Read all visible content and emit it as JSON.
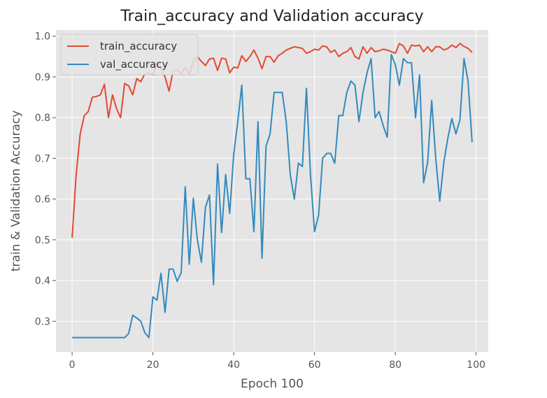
{
  "chart_data": {
    "type": "line",
    "title": "Train_accuracy and Validation accuracy",
    "xlabel": "Epoch 100",
    "ylabel": "train & Validation Accuracy",
    "xlim": [
      -4,
      103
    ],
    "ylim": [
      0.225,
      1.015
    ],
    "x_ticks": [
      "0",
      "20",
      "40",
      "60",
      "80",
      "100"
    ],
    "y_ticks": [
      "0.3",
      "0.4",
      "0.5",
      "0.6",
      "0.7",
      "0.8",
      "0.9",
      "1.0"
    ],
    "grid": true,
    "legend_position": "top-left",
    "style": "ggplot",
    "series": [
      {
        "name": "train_accuracy",
        "color": "#E24A33",
        "values": [
          0.505,
          0.66,
          0.76,
          0.805,
          0.815,
          0.85,
          0.852,
          0.856,
          0.882,
          0.8,
          0.856,
          0.822,
          0.8,
          0.884,
          0.878,
          0.856,
          0.896,
          0.888,
          0.908,
          0.91,
          0.905,
          0.935,
          0.92,
          0.9,
          0.865,
          0.915,
          0.918,
          0.908,
          0.922,
          0.908,
          0.938,
          0.95,
          0.938,
          0.928,
          0.944,
          0.946,
          0.916,
          0.946,
          0.944,
          0.91,
          0.924,
          0.922,
          0.952,
          0.938,
          0.95,
          0.966,
          0.946,
          0.92,
          0.95,
          0.95,
          0.936,
          0.952,
          0.958,
          0.966,
          0.97,
          0.974,
          0.972,
          0.97,
          0.958,
          0.962,
          0.968,
          0.966,
          0.976,
          0.974,
          0.96,
          0.966,
          0.95,
          0.958,
          0.962,
          0.972,
          0.95,
          0.944,
          0.974,
          0.958,
          0.972,
          0.962,
          0.964,
          0.968,
          0.966,
          0.962,
          0.958,
          0.982,
          0.976,
          0.958,
          0.978,
          0.976,
          0.978,
          0.962,
          0.974,
          0.962,
          0.974,
          0.974,
          0.966,
          0.97,
          0.978,
          0.972,
          0.982,
          0.975,
          0.97,
          0.96
        ]
      },
      {
        "name": "val_accuracy",
        "color": "#348ABD",
        "values": [
          0.26,
          0.26,
          0.26,
          0.26,
          0.26,
          0.26,
          0.26,
          0.26,
          0.26,
          0.26,
          0.26,
          0.26,
          0.26,
          0.26,
          0.27,
          0.315,
          0.308,
          0.3,
          0.272,
          0.26,
          0.36,
          0.352,
          0.418,
          0.322,
          0.428,
          0.428,
          0.398,
          0.42,
          0.63,
          0.44,
          0.602,
          0.5,
          0.445,
          0.58,
          0.61,
          0.39,
          0.686,
          0.518,
          0.66,
          0.565,
          0.71,
          0.79,
          0.88,
          0.65,
          0.65,
          0.52,
          0.79,
          0.455,
          0.73,
          0.76,
          0.862,
          0.862,
          0.862,
          0.79,
          0.66,
          0.6,
          0.688,
          0.68,
          0.872,
          0.66,
          0.52,
          0.56,
          0.7,
          0.712,
          0.712,
          0.688,
          0.805,
          0.805,
          0.862,
          0.89,
          0.88,
          0.79,
          0.862,
          0.91,
          0.945,
          0.8,
          0.815,
          0.78,
          0.752,
          0.955,
          0.93,
          0.88,
          0.945,
          0.935,
          0.935,
          0.8,
          0.905,
          0.64,
          0.69,
          0.842,
          0.7,
          0.595,
          0.69,
          0.75,
          0.798,
          0.76,
          0.795,
          0.945,
          0.89,
          0.74
        ]
      }
    ]
  }
}
